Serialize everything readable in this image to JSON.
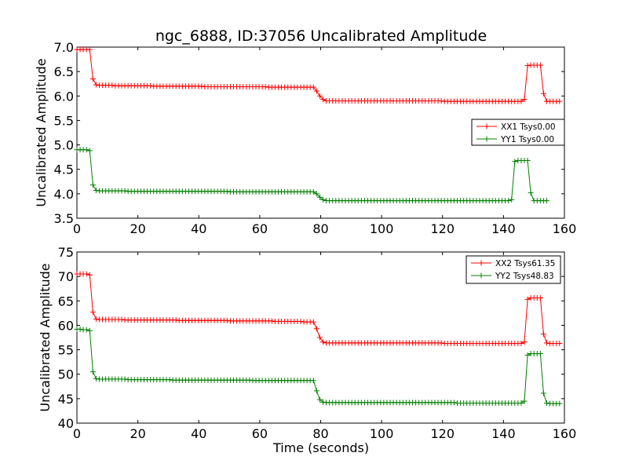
{
  "figure": {
    "title": "ngc_6888, ID:37056 Uncalibrated Amplitude",
    "xlabel": "Time (seconds)"
  },
  "chart_data": [
    {
      "type": "line",
      "ylabel": "Uncalibrated Amplitude",
      "xlim": [
        0,
        160
      ],
      "ylim": [
        3.5,
        7.0
      ],
      "xticks": [
        0,
        20,
        40,
        60,
        80,
        100,
        120,
        140,
        160
      ],
      "yticks": [
        3.5,
        4.0,
        4.5,
        5.0,
        5.5,
        6.0,
        6.5,
        7.0
      ],
      "xtick_labels": [
        "0",
        "20",
        "40",
        "60",
        "80",
        "100",
        "120",
        "140",
        "160"
      ],
      "ytick_labels": [
        "3.5",
        "4.0",
        "4.5",
        "5.0",
        "5.5",
        "6.0",
        "6.5",
        "7.0"
      ],
      "legend_position": "center-right",
      "marker": "+",
      "x_spacing_seconds": 1.049,
      "series": [
        {
          "name": "XX1 Tsys0.00",
          "color": "#ff0000",
          "values": [
            6.95,
            6.95,
            6.95,
            6.95,
            6.95,
            6.35,
            6.23,
            6.22,
            6.22,
            6.22,
            6.22,
            6.22,
            6.21,
            6.21,
            6.21,
            6.21,
            6.21,
            6.21,
            6.21,
            6.21,
            6.21,
            6.21,
            6.21,
            6.21,
            6.2,
            6.2,
            6.2,
            6.2,
            6.2,
            6.2,
            6.2,
            6.2,
            6.2,
            6.2,
            6.2,
            6.2,
            6.2,
            6.2,
            6.2,
            6.2,
            6.19,
            6.19,
            6.19,
            6.19,
            6.19,
            6.19,
            6.19,
            6.19,
            6.19,
            6.19,
            6.19,
            6.19,
            6.19,
            6.19,
            6.19,
            6.19,
            6.19,
            6.19,
            6.19,
            6.19,
            6.18,
            6.18,
            6.18,
            6.18,
            6.18,
            6.18,
            6.18,
            6.18,
            6.18,
            6.18,
            6.18,
            6.18,
            6.18,
            6.18,
            6.18,
            6.1,
            6.0,
            5.93,
            5.9,
            5.9,
            5.9,
            5.9,
            5.9,
            5.9,
            5.9,
            5.9,
            5.9,
            5.9,
            5.9,
            5.9,
            5.9,
            5.9,
            5.9,
            5.9,
            5.9,
            5.9,
            5.9,
            5.9,
            5.9,
            5.9,
            5.9,
            5.9,
            5.9,
            5.9,
            5.9,
            5.9,
            5.9,
            5.9,
            5.9,
            5.9,
            5.9,
            5.9,
            5.9,
            5.9,
            5.9,
            5.89,
            5.89,
            5.89,
            5.89,
            5.89,
            5.89,
            5.89,
            5.89,
            5.89,
            5.89,
            5.89,
            5.89,
            5.89,
            5.89,
            5.89,
            5.89,
            5.89,
            5.89,
            5.89,
            5.89,
            5.89,
            5.89,
            5.89,
            5.89,
            5.89,
            5.93,
            6.62,
            6.63,
            6.63,
            6.63,
            6.63,
            6.05,
            5.89,
            5.89,
            5.89,
            5.89,
            5.89
          ]
        },
        {
          "name": "YY1 Tsys0.00",
          "color": "#008000",
          "values": [
            4.9,
            4.9,
            4.9,
            4.9,
            4.88,
            4.18,
            4.07,
            4.06,
            4.06,
            4.06,
            4.06,
            4.06,
            4.06,
            4.06,
            4.06,
            4.06,
            4.05,
            4.05,
            4.05,
            4.05,
            4.05,
            4.05,
            4.05,
            4.05,
            4.05,
            4.05,
            4.05,
            4.05,
            4.05,
            4.05,
            4.05,
            4.05,
            4.05,
            4.05,
            4.05,
            4.05,
            4.05,
            4.05,
            4.05,
            4.05,
            4.05,
            4.05,
            4.05,
            4.05,
            4.05,
            4.05,
            4.05,
            4.05,
            4.04,
            4.04,
            4.04,
            4.04,
            4.04,
            4.04,
            4.04,
            4.04,
            4.04,
            4.04,
            4.04,
            4.04,
            4.04,
            4.04,
            4.04,
            4.04,
            4.04,
            4.04,
            4.04,
            4.04,
            4.04,
            4.04,
            4.04,
            4.04,
            4.04,
            4.04,
            4.04,
            4.0,
            3.93,
            3.88,
            3.86,
            3.86,
            3.86,
            3.86,
            3.86,
            3.86,
            3.86,
            3.86,
            3.86,
            3.86,
            3.86,
            3.86,
            3.86,
            3.86,
            3.86,
            3.86,
            3.86,
            3.86,
            3.86,
            3.86,
            3.86,
            3.86,
            3.86,
            3.86,
            3.86,
            3.86,
            3.86,
            3.86,
            3.86,
            3.86,
            3.86,
            3.86,
            3.86,
            3.86,
            3.86,
            3.86,
            3.86,
            3.86,
            3.86,
            3.86,
            3.86,
            3.86,
            3.86,
            3.86,
            3.86,
            3.86,
            3.86,
            3.86,
            3.86,
            3.86,
            3.86,
            3.86,
            3.86,
            3.86,
            3.86,
            3.86,
            3.86,
            3.86,
            3.88,
            4.66,
            4.68,
            4.68,
            4.68,
            4.68,
            4.02,
            3.86,
            3.86,
            3.86,
            3.86,
            3.86
          ]
        }
      ]
    },
    {
      "type": "line",
      "ylabel": "Uncalibrated Amplitude",
      "xlabel": "Time (seconds)",
      "xlim": [
        0,
        160
      ],
      "ylim": [
        40,
        75
      ],
      "xticks": [
        0,
        20,
        40,
        60,
        80,
        100,
        120,
        140,
        160
      ],
      "yticks": [
        40,
        45,
        50,
        55,
        60,
        65,
        70,
        75
      ],
      "xtick_labels": [
        "0",
        "20",
        "40",
        "60",
        "80",
        "100",
        "120",
        "140",
        "160"
      ],
      "ytick_labels": [
        "40",
        "45",
        "50",
        "55",
        "60",
        "65",
        "70",
        "75"
      ],
      "legend_position": "top-right",
      "marker": "+",
      "x_spacing_seconds": 1.049,
      "series": [
        {
          "name": "XX2 Tsys61.35",
          "color": "#ff0000",
          "values": [
            70.5,
            70.5,
            70.5,
            70.5,
            70.3,
            62.7,
            61.3,
            61.2,
            61.2,
            61.2,
            61.2,
            61.2,
            61.2,
            61.2,
            61.2,
            61.1,
            61.1,
            61.1,
            61.1,
            61.1,
            61.1,
            61.1,
            61.1,
            61.1,
            61.1,
            61.1,
            61.1,
            61.1,
            61.1,
            61.1,
            61.1,
            61.1,
            61.0,
            61.0,
            61.0,
            61.0,
            61.0,
            61.0,
            61.0,
            61.0,
            61.0,
            61.0,
            61.0,
            61.0,
            61.0,
            61.0,
            61.0,
            61.0,
            60.9,
            60.9,
            60.9,
            60.9,
            60.9,
            60.9,
            60.9,
            60.9,
            60.9,
            60.9,
            60.9,
            60.9,
            60.9,
            60.9,
            60.8,
            60.8,
            60.8,
            60.8,
            60.8,
            60.8,
            60.8,
            60.8,
            60.8,
            60.7,
            60.7,
            60.7,
            60.7,
            59.3,
            57.5,
            56.6,
            56.4,
            56.4,
            56.4,
            56.4,
            56.4,
            56.4,
            56.4,
            56.4,
            56.4,
            56.4,
            56.4,
            56.4,
            56.4,
            56.4,
            56.4,
            56.4,
            56.4,
            56.4,
            56.4,
            56.4,
            56.4,
            56.4,
            56.4,
            56.4,
            56.4,
            56.4,
            56.4,
            56.4,
            56.4,
            56.4,
            56.4,
            56.4,
            56.4,
            56.4,
            56.4,
            56.4,
            56.4,
            56.3,
            56.3,
            56.3,
            56.3,
            56.3,
            56.3,
            56.3,
            56.3,
            56.3,
            56.3,
            56.3,
            56.3,
            56.3,
            56.3,
            56.3,
            56.3,
            56.3,
            56.3,
            56.3,
            56.3,
            56.3,
            56.3,
            56.3,
            56.3,
            56.3,
            56.6,
            65.3,
            65.6,
            65.6,
            65.6,
            65.6,
            58.2,
            56.4,
            56.3,
            56.3,
            56.3,
            56.3
          ]
        },
        {
          "name": "YY2 Tsys48.83",
          "color": "#008000",
          "values": [
            59.2,
            59.2,
            59.1,
            59.1,
            58.9,
            50.5,
            49.1,
            49.0,
            49.0,
            49.0,
            49.0,
            49.0,
            49.0,
            49.0,
            49.0,
            49.0,
            48.9,
            48.9,
            48.9,
            48.9,
            48.9,
            48.9,
            48.9,
            48.9,
            48.9,
            48.9,
            48.9,
            48.9,
            48.9,
            48.9,
            48.8,
            48.8,
            48.8,
            48.8,
            48.8,
            48.8,
            48.8,
            48.8,
            48.8,
            48.8,
            48.8,
            48.8,
            48.8,
            48.8,
            48.8,
            48.8,
            48.8,
            48.8,
            48.8,
            48.8,
            48.8,
            48.8,
            48.8,
            48.8,
            48.8,
            48.7,
            48.7,
            48.7,
            48.7,
            48.7,
            48.7,
            48.7,
            48.7,
            48.7,
            48.7,
            48.7,
            48.7,
            48.7,
            48.7,
            48.7,
            48.7,
            48.7,
            48.7,
            48.7,
            48.7,
            46.6,
            44.8,
            44.3,
            44.2,
            44.2,
            44.2,
            44.2,
            44.2,
            44.2,
            44.2,
            44.2,
            44.2,
            44.2,
            44.2,
            44.2,
            44.2,
            44.2,
            44.2,
            44.2,
            44.2,
            44.2,
            44.2,
            44.2,
            44.2,
            44.2,
            44.2,
            44.2,
            44.2,
            44.2,
            44.2,
            44.2,
            44.2,
            44.2,
            44.2,
            44.2,
            44.2,
            44.2,
            44.2,
            44.2,
            44.2,
            44.2,
            44.2,
            44.2,
            44.2,
            44.1,
            44.1,
            44.1,
            44.1,
            44.1,
            44.1,
            44.1,
            44.1,
            44.1,
            44.1,
            44.1,
            44.1,
            44.1,
            44.1,
            44.1,
            44.1,
            44.1,
            44.1,
            44.1,
            44.1,
            44.1,
            44.5,
            53.9,
            54.2,
            54.2,
            54.2,
            54.2,
            46.1,
            44.1,
            44.0,
            44.0,
            44.0,
            44.0
          ]
        }
      ]
    }
  ]
}
